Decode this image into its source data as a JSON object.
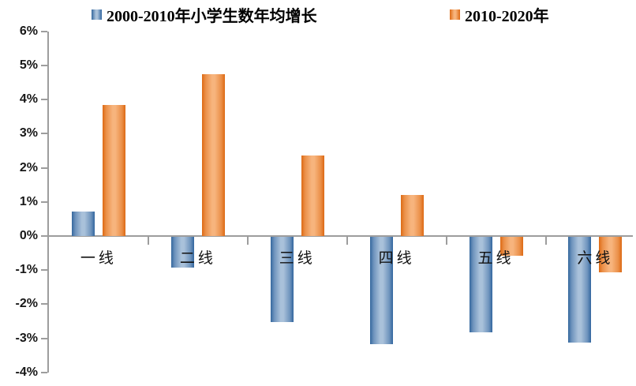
{
  "chart_data": {
    "type": "bar",
    "title": "",
    "categories": [
      "一线",
      "二线",
      "三线",
      "四线",
      "五线",
      "六线"
    ],
    "series": [
      {
        "name": "2000-2010年小学生数年均增长",
        "color_edge": "#35689e",
        "color_center": "#a9c1da",
        "values": [
          0.72,
          -0.9,
          -2.5,
          -3.15,
          -2.8,
          -3.1
        ]
      },
      {
        "name": "2010-2020年",
        "color_edge": "#dd6a14",
        "color_center": "#f7b47d",
        "values": [
          3.85,
          4.75,
          2.35,
          1.2,
          -0.55,
          -1.05
        ]
      }
    ],
    "unit": "percent",
    "ylim": [
      -4,
      6
    ],
    "ytick_step": 1,
    "ytick_labels": [
      "6%",
      "5%",
      "4%",
      "3%",
      "2%",
      "1%",
      "0%",
      "-1%",
      "-2%",
      "-3%",
      "-4%"
    ],
    "legend_position": "top",
    "grid": "off",
    "axis_color": "#9d9d9d"
  }
}
